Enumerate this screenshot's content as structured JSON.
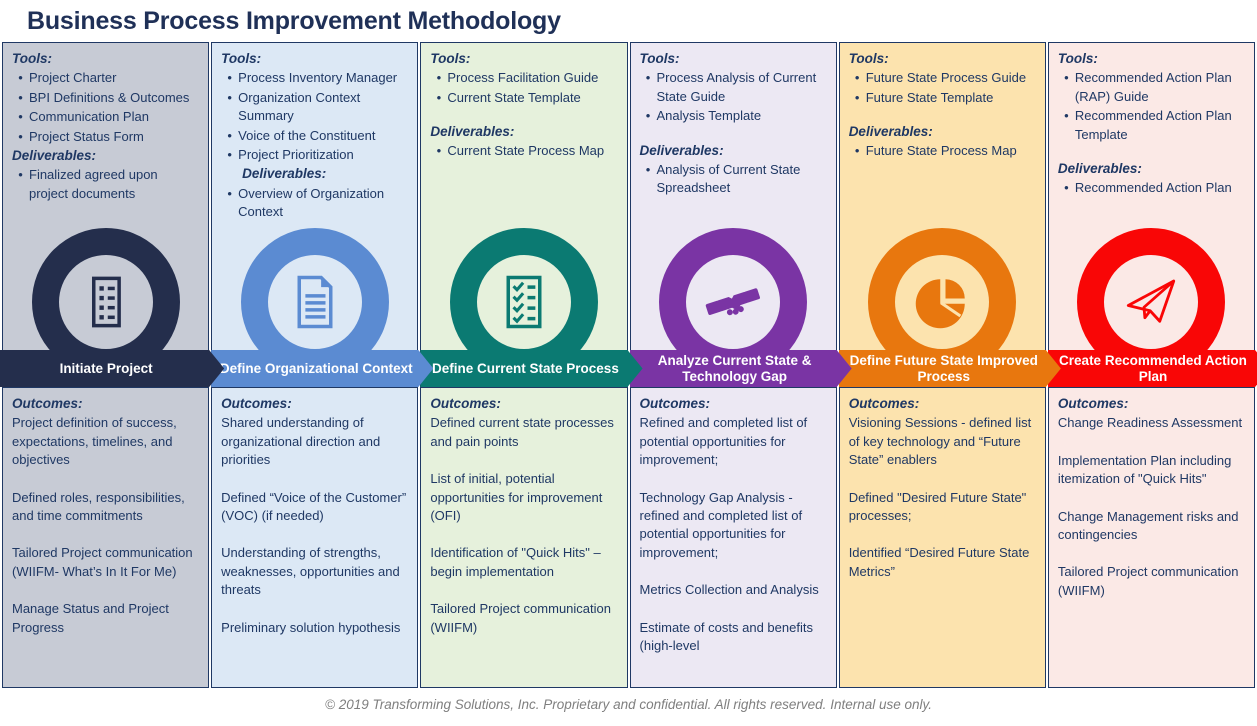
{
  "title": "Business Process Improvement Methodology",
  "footer": "© 2019 Transforming Solutions, Inc. Proprietary and confidential. All rights reserved. Internal use only.",
  "labels": {
    "tools": "Tools:",
    "deliverables": "Deliverables:",
    "outcomes": "Outcomes:"
  },
  "colors": {
    "page_bg": "#FFFFFF",
    "text": "#1F3864",
    "border": "#1F3864",
    "title": "#1F3057",
    "footer_text": "#7F7F7F",
    "banner_text": "#FFFFFF"
  },
  "phases": [
    {
      "name": "Initiate Project",
      "icon": "clipboard-list-icon",
      "colors": {
        "bg": "#C7CBD5",
        "accent": "#242E4C"
      },
      "tools": [
        "Project Charter",
        "BPI Definitions & Outcomes",
        "Communication  Plan",
        "Project Status Form"
      ],
      "deliverables": [
        "Finalized agreed upon project documents"
      ],
      "outcomes": [
        "Project definition of success, expectations, timelines, and objectives",
        "Defined roles, responsibilities, and time commitments",
        "Tailored Project communication   (WIIFM- What’s In It For Me)",
        "Manage Status and Project Progress"
      ]
    },
    {
      "name": "Define Organizational Context",
      "icon": "document-icon",
      "colors": {
        "bg": "#DCE8F5",
        "accent": "#5B8BD2"
      },
      "tools": [
        "Process Inventory Manager",
        "Organization Context Summary",
        "Voice of the Constituent",
        "Project Prioritization"
      ],
      "deliverables": [
        "Overview of Organization Context"
      ],
      "outcomes": [
        "Shared understanding of organizational direction and priorities",
        "Defined “Voice of the Customer” (VOC) (if needed)",
        "Understanding of strengths, weaknesses, opportunities and threats",
        "Preliminary solution hypothesis"
      ]
    },
    {
      "name": "Define Current State Process",
      "icon": "checklist-icon",
      "colors": {
        "bg": "#E6F1DC",
        "accent": "#0B7A72"
      },
      "tools": [
        "Process Facilitation Guide",
        "Current State Template"
      ],
      "deliverables": [
        "Current State Process Map"
      ],
      "outcomes": [
        "Defined current  state processes and pain points",
        "List of initial, potential opportunities  for improvement  (OFI)",
        "Identification of \"Quick Hits\" – begin implementation",
        "Tailored Project communication   (WIIFM)"
      ]
    },
    {
      "name": "Analyze Current State & Technology Gap",
      "icon": "handshake-icon",
      "colors": {
        "bg": "#ECE8F3",
        "accent": "#7A34A4"
      },
      "tools": [
        "Process Analysis of Current State Guide",
        "Analysis Template"
      ],
      "deliverables": [
        "Analysis of Current State Spreadsheet"
      ],
      "outcomes": [
        "Refined and completed list of potential opportunities for improvement;",
        "Technology Gap Analysis - refined and completed list of potential opportunities  for improvement;",
        "Metrics Collection and Analysis",
        "Estimate of costs and benefits (high-level"
      ]
    },
    {
      "name": "Define Future State Improved Process",
      "icon": "pie-chart-icon",
      "colors": {
        "bg": "#FCE3AE",
        "accent": "#E8770E"
      },
      "tools": [
        "Future State Process Guide",
        "Future State Template"
      ],
      "deliverables": [
        "Future State Process Map"
      ],
      "outcomes": [
        "Visioning Sessions - defined list of key technology  and “Future State” enablers",
        "Defined  \"Desired Future State\" processes;",
        "Identified “Desired Future State Metrics”"
      ]
    },
    {
      "name": "Create Recommended Action Plan",
      "icon": "paper-plane-icon",
      "colors": {
        "bg": "#FBE9E6",
        "accent": "#F90606"
      },
      "tools": [
        "Recommended Action Plan (RAP) Guide",
        "Recommended  Action Plan Template"
      ],
      "deliverables": [
        "Recommended  Action Plan"
      ],
      "outcomes": [
        "Change Readiness Assessment",
        "Implementation  Plan including itemization of \"Quick Hits\"",
        "Change Management  risks and contingencies",
        "Tailored Project communication   (WIIFM)"
      ]
    }
  ]
}
